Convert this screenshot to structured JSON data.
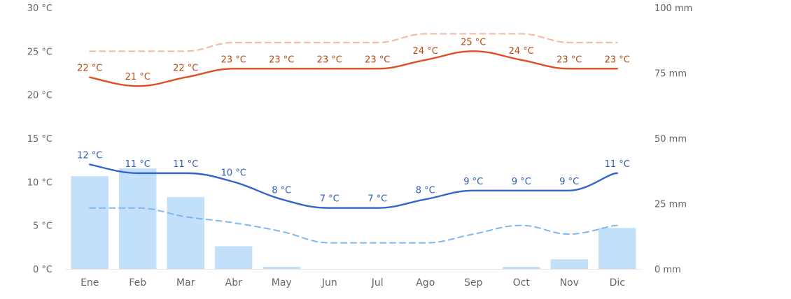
{
  "chart_data": {
    "type": "combo",
    "categories": [
      "Ene",
      "Feb",
      "Mar",
      "Abr",
      "May",
      "Jun",
      "Jul",
      "Ago",
      "Sep",
      "Oct",
      "Nov",
      "Dic"
    ],
    "y_left": {
      "ticks": [
        "0 °C",
        "5 °C",
        "10 °C",
        "15 °C",
        "20 °C",
        "25 °C",
        "30 °C"
      ],
      "range": [
        0,
        30
      ]
    },
    "y_right": {
      "ticks": [
        "0 mm",
        "25 mm",
        "50 mm",
        "75 mm",
        "100 mm"
      ],
      "range": [
        0,
        100
      ]
    },
    "grid": false,
    "series": [
      {
        "kind": "bar",
        "axis": "right",
        "color": "#c3e0fb",
        "values": [
          35.5,
          38.5,
          27.5,
          8.7,
          0.8,
          0,
          0,
          0,
          0,
          0.8,
          3.7,
          15.7
        ]
      },
      {
        "kind": "line",
        "axis": "left",
        "style": "solid",
        "color": "#e04e24",
        "values": [
          22,
          21,
          22,
          23,
          23,
          23,
          23,
          24,
          25,
          24,
          23,
          23
        ],
        "labels": [
          "22 °C",
          "21 °C",
          "22 °C",
          "23 °C",
          "23 °C",
          "23 °C",
          "23 °C",
          "24 °C",
          "25 °C",
          "24 °C",
          "23 °C",
          "23 °C"
        ],
        "label_color": "#b84a14"
      },
      {
        "kind": "line",
        "axis": "left",
        "style": "dashed",
        "color": "#f9b4a2",
        "values": [
          25,
          25,
          25,
          26,
          26,
          26,
          26,
          27,
          27,
          27,
          26,
          26
        ]
      },
      {
        "kind": "line",
        "axis": "left",
        "style": "solid",
        "color": "#3366cc",
        "values": [
          12,
          11,
          11,
          10,
          8,
          7,
          7,
          8,
          9,
          9,
          9,
          11
        ],
        "labels": [
          "12 °C",
          "11 °C",
          "11 °C",
          "10 °C",
          "8 °C",
          "7 °C",
          "7 °C",
          "8 °C",
          "9 °C",
          "9 °C",
          "9 °C",
          "11 °C"
        ],
        "label_color": "#2d5cb8"
      },
      {
        "kind": "line",
        "axis": "left",
        "style": "dashed",
        "color": "#7cb8f0",
        "values": [
          7,
          7,
          6,
          5.3,
          4.3,
          3,
          3,
          3,
          4,
          5,
          4,
          5
        ]
      }
    ]
  }
}
